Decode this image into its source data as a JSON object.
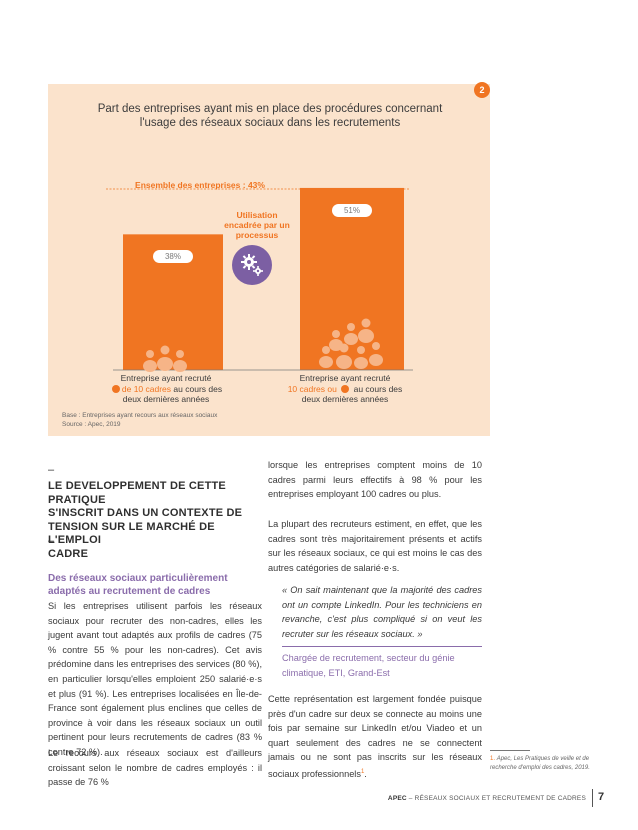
{
  "chart": {
    "badge": "2",
    "title_line1": "Part des entreprises ayant mis en place des procédures concernant",
    "title_line2": "l'usage des réseaux sociaux dans les recrutements",
    "overall_label": "Ensemble des entreprises : 43%",
    "util_line1": "Utilisation",
    "util_line2": "encadrée par un",
    "util_line3": "processus",
    "cat1_line1": "Entreprise ayant recruté",
    "cat1_hl": "de 10 cadres",
    "cat1_rest": "au cours des",
    "cat1_line3": "deux dernières années",
    "cat2_line1": "Entreprise ayant recruté",
    "cat2_hl": "10 cadres ou",
    "cat2_rest": "au cours des",
    "cat2_line3": "deux dernières années",
    "note_line1": "Base : Entreprises ayant recours aux réseaux sociaux",
    "note_line2": "Source : Apec, 2019",
    "colors": {
      "bar": "#f07522",
      "panel": "#fbe3cc",
      "accent": "#8a6cab",
      "gear": "#7c5fa3"
    }
  },
  "chart_data": {
    "type": "bar",
    "title": "Part des entreprises ayant mis en place des procédures concernant l'usage des réseaux sociaux dans les recrutements",
    "categories": [
      "Entreprise ayant recruté - de 10 cadres au cours des deux dernières années",
      "Entreprise ayant recruté 10 cadres ou + au cours des deux dernières années"
    ],
    "values": [
      38,
      51
    ],
    "value_labels": [
      "38%",
      "51%"
    ],
    "reference_line": {
      "label": "Ensemble des entreprises : 43%",
      "value": 43
    },
    "ylim": [
      0,
      60
    ],
    "xlabel": "",
    "ylabel": ""
  },
  "article": {
    "dash_top": "–",
    "heading_lines": [
      "LE DEVELOPPEMENT DE CETTE PRATIQUE",
      "S'INSCRIT DANS UN CONTEXTE DE",
      "TENSION SUR LE MARCHÉ DE L'EMPLOI",
      "CADRE"
    ],
    "dash_bottom": "–",
    "subheading_line1": "Des réseaux sociaux particulièrement",
    "subheading_line2": "adaptés au recrutement de cadres",
    "left_p1": "Si les entreprises utilisent parfois les réseaux sociaux pour recruter des non-cadres, elles les jugent avant tout adaptés aux profils de cadres (75 % contre 55 % pour les non-cadres). Cet avis prédomine dans les entreprises des services (80 %), en particulier lorsqu'elles emploient 250 salarié·e·s et plus (91 %). Les entreprises localisées en Île-de-France sont également plus enclines que celles de province à voir dans les réseaux sociaux un outil pertinent pour leurs recrutements de cadres (83 % contre 72 %).",
    "left_p2": "Le recours aux réseaux sociaux est d'ailleurs croissant selon le nombre de cadres employés : il passe de 76 %",
    "right_p1": "lorsque les entreprises comptent moins de 10 cadres parmi leurs effectifs à 98 % pour les entreprises employant 100 cadres ou plus.",
    "right_p2": "La plupart des recruteurs estiment, en effet, que les cadres sont très majoritairement présents et actifs sur les réseaux sociaux, ce qui est moins le cas des autres catégories de salarié·e·s.",
    "quote": "« On sait maintenant que la majorité des cadres ont un compte LinkedIn. Pour les techniciens en revanche, c'est plus compliqué si on veut les recruter sur les réseaux sociaux. »",
    "quote_source": "Chargée de recrutement, secteur du génie climatique, ETI, Grand-Est",
    "right_p3": "Cette représentation est largement fondée puisque près d'un cadre sur deux se connecte au moins une fois par semaine sur LinkedIn et/ou Viadeo et un quart seulement des cadres ne se connectent jamais ou ne sont pas inscrits sur les réseaux sociaux professionnels",
    "right_p3_sup": "1",
    "right_p3_end": "."
  },
  "footnote": {
    "num": "1.",
    "text": "Apec, Les Pratiques de veille et de recherche d'emploi des cadres, 2019."
  },
  "footer": {
    "brand": "APEC",
    "text": "– RÉSEAUX SOCIAUX ET RECRUTEMENT DE CADRES",
    "page": "7"
  }
}
